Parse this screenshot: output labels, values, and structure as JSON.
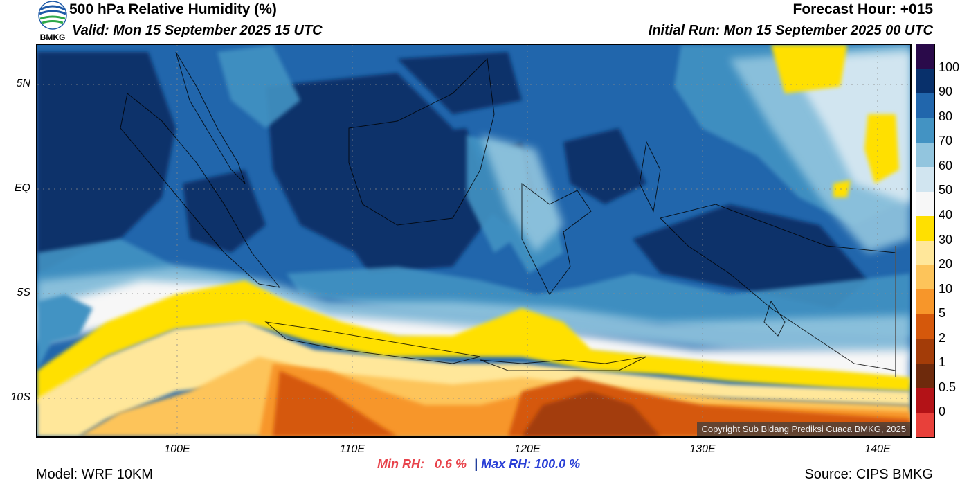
{
  "header": {
    "title": "500 hPa Relative Humidity (%)",
    "valid": "Valid: Mon 15 September 2025 15 UTC",
    "forecast_hour": "Forecast Hour: +015",
    "initial_run": "Initial Run: Mon 15 September 2025 00 UTC"
  },
  "logo": {
    "text": "BMKG",
    "icon": "bmkg-logo-icon"
  },
  "map": {
    "lat_labels": [
      "5N",
      "EQ",
      "5S",
      "10S"
    ],
    "lon_labels": [
      "100E",
      "110E",
      "120E",
      "130E",
      "140E"
    ],
    "copyright": "Copyright Sub Bidang Prediksi Cuaca BMKG, 2025"
  },
  "stats": {
    "min_label": "Min RH:",
    "min_value": "0.6 %",
    "separator": "|",
    "max_label": "Max RH:",
    "max_value": "100.0 %"
  },
  "footer": {
    "model": "Model: WRF 10KM",
    "source": "Source: CIPS BMKG"
  },
  "colorbar": {
    "labels": [
      "100",
      "90",
      "80",
      "70",
      "60",
      "50",
      "40",
      "30",
      "20",
      "10",
      "5",
      "2",
      "1",
      "0.5",
      "0"
    ],
    "colors": [
      "#2a0a4a",
      "#08306b",
      "#2166ac",
      "#4393c3",
      "#92c5de",
      "#d1e5f0",
      "#f7f7f7",
      "#ffe000",
      "#ffe79a",
      "#fdc45a",
      "#f7962a",
      "#d5580b",
      "#a33c08",
      "#6e2a0c",
      "#b31217",
      "#e8403a"
    ]
  }
}
